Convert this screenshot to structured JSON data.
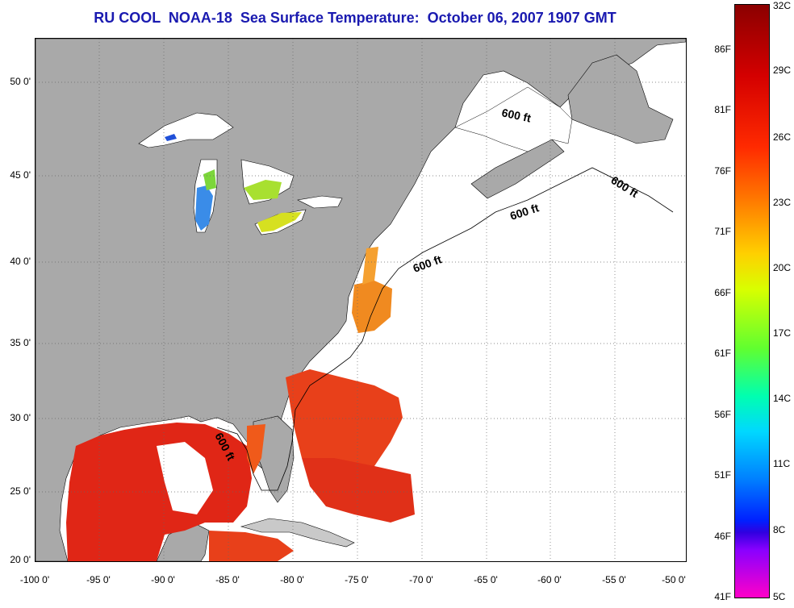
{
  "title": "RU COOL  NOAA-18  Sea Surface Temperature:  October 06, 2007 1907 GMT",
  "map": {
    "colors": {
      "land": "#a9a9a9",
      "ocean_nodata": "#ffffff",
      "coast": "#000000"
    },
    "lat_labels": [
      "50 0'",
      "45 0'",
      "40 0'",
      "35 0'",
      "30 0'",
      "25 0'",
      "20 0'"
    ],
    "lon_labels": [
      "-100 0'",
      "-95 0'",
      "-90 0'",
      "-85 0'",
      "-80 0'",
      "-75 0'",
      "-70 0'",
      "-65 0'",
      "-60 0'",
      "-55 0'",
      "-50 0'"
    ],
    "depth_contour_label": "600 ft"
  },
  "colorbar": {
    "fahrenheit": [
      "86F",
      "81F",
      "76F",
      "71F",
      "66F",
      "61F",
      "56F",
      "51F",
      "46F",
      "41F"
    ],
    "celsius": [
      "32C",
      "29C",
      "26C",
      "23C",
      "20C",
      "17C",
      "14C",
      "11C",
      "8C",
      "5C"
    ]
  }
}
